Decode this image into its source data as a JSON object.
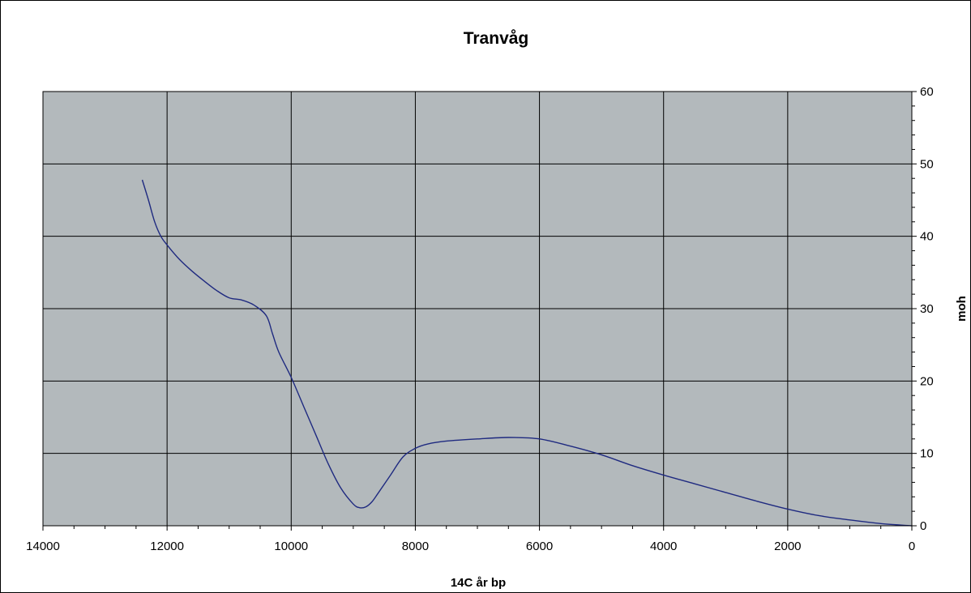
{
  "chart_data": {
    "type": "line",
    "title": "Tranvåg",
    "xlabel": "14C år bp",
    "ylabel": "moh",
    "x_reversed": true,
    "xlim": [
      0,
      14000
    ],
    "ylim": [
      0,
      60
    ],
    "x_ticks": [
      14000,
      12000,
      10000,
      8000,
      6000,
      4000,
      2000,
      0
    ],
    "y_ticks": [
      0,
      10,
      20,
      30,
      40,
      50,
      60
    ],
    "y_axis_side": "right",
    "grid": true,
    "plot_background": "#b3b9bc",
    "line_color": "#1f2a80",
    "series": [
      {
        "x": [
          12400,
          12300,
          12200,
          12100,
          12000,
          11800,
          11600,
          11400,
          11200,
          11000,
          10800,
          10600,
          10400,
          10300,
          10200,
          10000,
          9800,
          9600,
          9400,
          9200,
          9000,
          8900,
          8800,
          8700,
          8600,
          8400,
          8200,
          8000,
          7800,
          7500,
          7000,
          6500,
          6000,
          5500,
          5000,
          4500,
          4000,
          3500,
          3000,
          2500,
          2000,
          1500,
          1000,
          500,
          0
        ],
        "y": [
          47.8,
          45.0,
          42.0,
          40.0,
          38.8,
          36.8,
          35.2,
          33.8,
          32.5,
          31.5,
          31.2,
          30.5,
          29.0,
          26.5,
          24.0,
          20.5,
          16.5,
          12.5,
          8.5,
          5.2,
          3.0,
          2.5,
          2.6,
          3.3,
          4.5,
          7.0,
          9.5,
          10.7,
          11.3,
          11.7,
          12.0,
          12.2,
          12.0,
          11.0,
          9.8,
          8.3,
          7.0,
          5.8,
          4.6,
          3.4,
          2.3,
          1.4,
          0.8,
          0.3,
          0.0
        ]
      }
    ]
  }
}
